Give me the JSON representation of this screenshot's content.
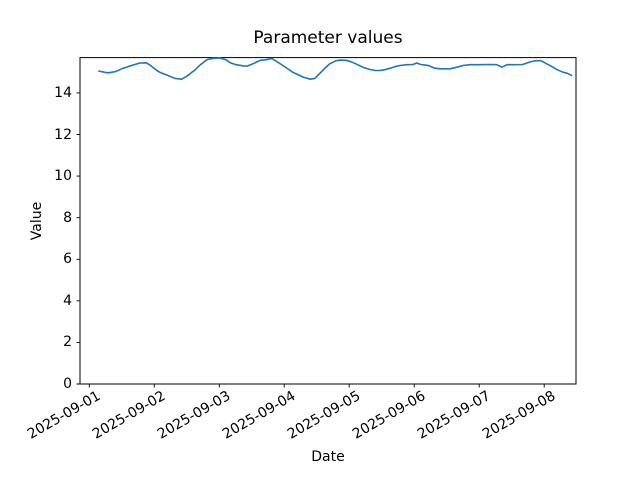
{
  "chart_data": {
    "type": "line",
    "title": "Parameter values",
    "xlabel": "Date",
    "ylabel": "Value",
    "grid": false,
    "legend": null,
    "line_color": "#1f77b4",
    "axis_color": "#000000",
    "background_color": "#ffffff",
    "ylim": [
      0,
      15.7
    ],
    "y_ticks": [
      0,
      2,
      4,
      6,
      8,
      10,
      12,
      14
    ],
    "x_unit": "days since 2025-09-01 00:00",
    "xlim_days": [
      -0.143,
      7.49
    ],
    "x_tick_days": [
      0,
      1,
      2,
      3,
      4,
      5,
      6,
      7
    ],
    "x_tick_labels": [
      "2025-09-01",
      "2025-09-02",
      "2025-09-03",
      "2025-09-04",
      "2025-09-05",
      "2025-09-06",
      "2025-09-07",
      "2025-09-08"
    ],
    "series": [
      {
        "name": "Parameter values",
        "points": [
          [
            0.15,
            15.05
          ],
          [
            0.23,
            15.0
          ],
          [
            0.29,
            14.97
          ],
          [
            0.4,
            15.02
          ],
          [
            0.5,
            15.16
          ],
          [
            0.58,
            15.25
          ],
          [
            0.68,
            15.35
          ],
          [
            0.78,
            15.44
          ],
          [
            0.88,
            15.45
          ],
          [
            0.95,
            15.3
          ],
          [
            1.04,
            15.08
          ],
          [
            1.1,
            14.97
          ],
          [
            1.19,
            14.87
          ],
          [
            1.27,
            14.76
          ],
          [
            1.32,
            14.7
          ],
          [
            1.42,
            14.66
          ],
          [
            1.49,
            14.78
          ],
          [
            1.55,
            14.92
          ],
          [
            1.63,
            15.12
          ],
          [
            1.7,
            15.33
          ],
          [
            1.81,
            15.6
          ],
          [
            1.9,
            15.66
          ],
          [
            2.01,
            15.68
          ],
          [
            2.1,
            15.6
          ],
          [
            2.17,
            15.45
          ],
          [
            2.26,
            15.36
          ],
          [
            2.37,
            15.3
          ],
          [
            2.43,
            15.29
          ],
          [
            2.52,
            15.4
          ],
          [
            2.63,
            15.57
          ],
          [
            2.72,
            15.6
          ],
          [
            2.81,
            15.65
          ],
          [
            2.89,
            15.5
          ],
          [
            2.98,
            15.32
          ],
          [
            3.06,
            15.15
          ],
          [
            3.13,
            15.0
          ],
          [
            3.21,
            14.88
          ],
          [
            3.29,
            14.76
          ],
          [
            3.4,
            14.66
          ],
          [
            3.47,
            14.7
          ],
          [
            3.55,
            14.95
          ],
          [
            3.63,
            15.2
          ],
          [
            3.7,
            15.4
          ],
          [
            3.8,
            15.55
          ],
          [
            3.87,
            15.58
          ],
          [
            3.95,
            15.57
          ],
          [
            4.03,
            15.5
          ],
          [
            4.1,
            15.4
          ],
          [
            4.21,
            15.24
          ],
          [
            4.32,
            15.13
          ],
          [
            4.4,
            15.08
          ],
          [
            4.47,
            15.08
          ],
          [
            4.55,
            15.12
          ],
          [
            4.63,
            15.19
          ],
          [
            4.7,
            15.26
          ],
          [
            4.78,
            15.32
          ],
          [
            4.89,
            15.36
          ],
          [
            4.98,
            15.37
          ],
          [
            5.04,
            15.44
          ],
          [
            5.1,
            15.37
          ],
          [
            5.2,
            15.33
          ],
          [
            5.24,
            15.29
          ],
          [
            5.32,
            15.19
          ],
          [
            5.4,
            15.16
          ],
          [
            5.55,
            15.16
          ],
          [
            5.66,
            15.24
          ],
          [
            5.75,
            15.32
          ],
          [
            5.86,
            15.36
          ],
          [
            6.01,
            15.36
          ],
          [
            6.17,
            15.37
          ],
          [
            6.27,
            15.36
          ],
          [
            6.35,
            15.24
          ],
          [
            6.43,
            15.36
          ],
          [
            6.55,
            15.36
          ],
          [
            6.67,
            15.37
          ],
          [
            6.78,
            15.49
          ],
          [
            6.87,
            15.55
          ],
          [
            6.95,
            15.55
          ],
          [
            7.01,
            15.45
          ],
          [
            7.1,
            15.3
          ],
          [
            7.2,
            15.12
          ],
          [
            7.29,
            15.0
          ],
          [
            7.35,
            14.95
          ],
          [
            7.42,
            14.85
          ]
        ]
      }
    ]
  }
}
